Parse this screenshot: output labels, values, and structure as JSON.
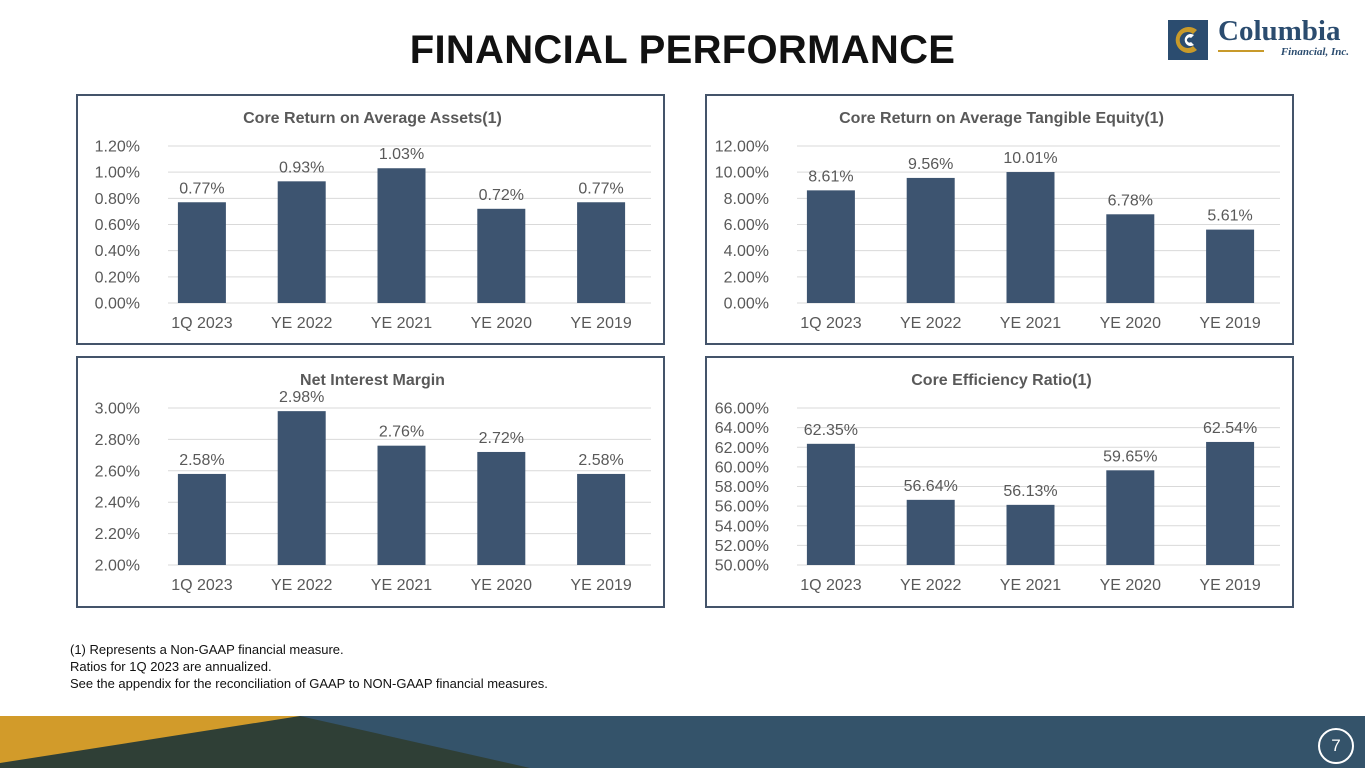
{
  "page": {
    "title": "FINANCIAL PERFORMANCE",
    "logo_name": "Columbia",
    "logo_sub": "Financial, Inc.",
    "page_number": "7",
    "footnotes": [
      "(1) Represents a Non-GAAP financial measure.",
      "Ratios for 1Q 2023 are annualized.",
      "See the appendix for the reconciliation of GAAP to NON-GAAP financial measures."
    ]
  },
  "colors": {
    "bar": "#3d5470",
    "grid": "#d9d9d9",
    "panel_border": "#44546a",
    "footer_dark": "#2f3f36",
    "footer_blue": "#34536a",
    "footer_gold": "#d29b2a"
  },
  "chart_data": [
    {
      "type": "bar",
      "title": "Core Return on Average Assets(1)",
      "categories": [
        "1Q 2023",
        "YE 2022",
        "YE 2021",
        "YE 2020",
        "YE 2019"
      ],
      "values": [
        0.77,
        0.93,
        1.03,
        0.72,
        0.77
      ],
      "value_labels": [
        "0.77%",
        "0.93%",
        "1.03%",
        "0.72%",
        "0.77%"
      ],
      "ylim": [
        0,
        1.2
      ],
      "yticks": [
        0,
        0.2,
        0.4,
        0.6,
        0.8,
        1.0,
        1.2
      ],
      "ytick_labels": [
        "0.00%",
        "0.20%",
        "0.40%",
        "0.60%",
        "0.80%",
        "1.00%",
        "1.20%"
      ],
      "xlabel": "",
      "ylabel": "",
      "grid": true
    },
    {
      "type": "bar",
      "title": "Core Return on Average Tangible Equity(1)",
      "categories": [
        "1Q 2023",
        "YE 2022",
        "YE 2021",
        "YE 2020",
        "YE 2019"
      ],
      "values": [
        8.61,
        9.56,
        10.01,
        6.78,
        5.61
      ],
      "value_labels": [
        "8.61%",
        "9.56%",
        "10.01%",
        "6.78%",
        "5.61%"
      ],
      "ylim": [
        0,
        12
      ],
      "yticks": [
        0,
        2,
        4,
        6,
        8,
        10,
        12
      ],
      "ytick_labels": [
        "0.00%",
        "2.00%",
        "4.00%",
        "6.00%",
        "8.00%",
        "10.00%",
        "12.00%"
      ],
      "xlabel": "",
      "ylabel": "",
      "grid": true
    },
    {
      "type": "bar",
      "title": "Net Interest Margin",
      "categories": [
        "1Q 2023",
        "YE 2022",
        "YE 2021",
        "YE 2020",
        "YE 2019"
      ],
      "values": [
        2.58,
        2.98,
        2.76,
        2.72,
        2.58
      ],
      "value_labels": [
        "2.58%",
        "2.98%",
        "2.76%",
        "2.72%",
        "2.58%"
      ],
      "ylim": [
        2.0,
        3.0
      ],
      "yticks": [
        2.0,
        2.2,
        2.4,
        2.6,
        2.8,
        3.0
      ],
      "ytick_labels": [
        "2.00%",
        "2.20%",
        "2.40%",
        "2.60%",
        "2.80%",
        "3.00%"
      ],
      "xlabel": "",
      "ylabel": "",
      "grid": true
    },
    {
      "type": "bar",
      "title": "Core Efficiency Ratio(1)",
      "categories": [
        "1Q 2023",
        "YE 2022",
        "YE 2021",
        "YE 2020",
        "YE 2019"
      ],
      "values": [
        62.35,
        56.64,
        56.13,
        59.65,
        62.54
      ],
      "value_labels": [
        "62.35%",
        "56.64%",
        "56.13%",
        "59.65%",
        "62.54%"
      ],
      "ylim": [
        50,
        66
      ],
      "yticks": [
        50,
        52,
        54,
        56,
        58,
        60,
        62,
        64,
        66
      ],
      "ytick_labels": [
        "50.00%",
        "52.00%",
        "54.00%",
        "56.00%",
        "58.00%",
        "60.00%",
        "62.00%",
        "64.00%",
        "66.00%"
      ],
      "xlabel": "",
      "ylabel": "",
      "grid": true
    }
  ]
}
